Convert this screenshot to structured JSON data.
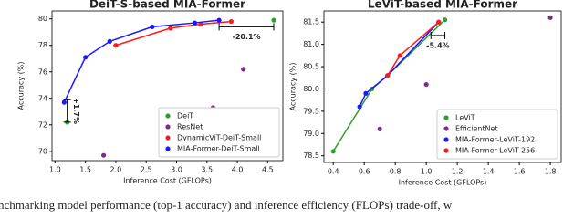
{
  "caption": "nchmarking model performance (top-1 accuracy) and inference efficiency (FLOPs) trade-off, w",
  "chart_data": [
    {
      "type": "scatter",
      "title": "DeiT-S-based MIA-Former",
      "x_label": "Inference Cost (GFLOPs)",
      "y_label": "Accuracy (%)",
      "xlim": [
        0.95,
        4.75
      ],
      "ylim": [
        69.3,
        80.6
      ],
      "xticks": [
        {
          "value": 1.0,
          "label": "1.0"
        },
        1.5,
        {
          "value": 2.0,
          "label": "2.0"
        },
        2.5,
        {
          "value": 3.0,
          "label": "3.0"
        },
        3.5,
        {
          "value": 4.0,
          "label": "4.0"
        },
        4.5
      ],
      "yticks": [
        70,
        72,
        74,
        76,
        78,
        80
      ],
      "legend": "lower right",
      "series": [
        {
          "name": "DeiT",
          "color": "#2ca02c",
          "lines": false,
          "x": [
            1.2,
            4.6
          ],
          "values": [
            72.2,
            79.9
          ]
        },
        {
          "name": "ResNet",
          "color": "#7b2d8e",
          "lines": false,
          "x": [
            1.8,
            3.6,
            4.1
          ],
          "values": [
            69.7,
            73.3,
            76.2
          ]
        },
        {
          "name": "DynamicViT-DeiT-Small",
          "color": "#ff1a1a",
          "lines": true,
          "x": [
            2.0,
            2.9,
            3.4,
            3.9
          ],
          "values": [
            78.0,
            79.3,
            79.6,
            79.8
          ]
        },
        {
          "name": "MIA-Former-DeiT-Small",
          "color": "#1a1aff",
          "lines": true,
          "x": [
            1.15,
            1.5,
            1.9,
            2.6,
            3.3,
            3.7
          ],
          "values": [
            73.7,
            77.1,
            78.3,
            79.4,
            79.7,
            79.9
          ]
        }
      ],
      "annotations": [
        {
          "text": "+1.7%",
          "x": [
            1.2,
            1.2
          ],
          "y": [
            72.2,
            73.9
          ]
        },
        {
          "text": "-20.1%",
          "x": [
            3.7,
            4.6
          ],
          "y": [
            79.4,
            79.4
          ]
        }
      ]
    },
    {
      "type": "scatter",
      "title": "LeViT-based MIA-Former",
      "x_label": "Inference Cost (GFLOPs)",
      "y_label": "Accuracy (%)",
      "xlim": [
        0.34,
        1.87
      ],
      "ylim": [
        78.35,
        81.75
      ],
      "xticks": [
        0.4,
        0.6,
        0.8,
        {
          "value": 1.0,
          "label": "1.0"
        },
        1.2,
        1.4,
        1.6,
        1.8
      ],
      "yticks": [
        78.5,
        {
          "value": 79.0,
          "label": "79.0"
        },
        79.5,
        {
          "value": 80.0,
          "label": "80.0"
        },
        80.5,
        {
          "value": 81.0,
          "label": "81.0"
        },
        81.5
      ],
      "legend": "lower right",
      "series": [
        {
          "name": "LeViT",
          "color": "#2ca02c",
          "lines": true,
          "x": [
            0.4,
            0.65,
            0.75,
            1.12
          ],
          "values": [
            78.6,
            80.0,
            80.3,
            81.55
          ]
        },
        {
          "name": "EfficientNet",
          "color": "#7b2d8e",
          "lines": false,
          "x": [
            0.7,
            1.0,
            1.8
          ],
          "values": [
            79.1,
            80.1,
            81.6
          ]
        },
        {
          "name": "MIA-Former-LeViT-192",
          "color": "#1a1aff",
          "lines": true,
          "x": [
            0.57,
            0.61,
            0.75,
            1.08
          ],
          "values": [
            79.6,
            79.9,
            80.3,
            81.5
          ]
        },
        {
          "name": "MIA-Former-LeViT-256",
          "color": "#ff1a1a",
          "lines": true,
          "x": [
            0.75,
            0.83,
            1.08
          ],
          "values": [
            80.3,
            80.75,
            81.5
          ]
        }
      ],
      "annotations": [
        {
          "text": "-5.4%",
          "x": [
            1.03,
            1.12
          ],
          "y": [
            81.2,
            81.2
          ]
        }
      ]
    }
  ]
}
